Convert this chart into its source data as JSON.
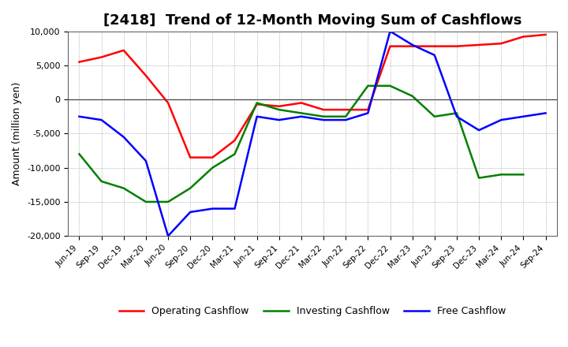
{
  "title": "[2418]  Trend of 12-Month Moving Sum of Cashflows",
  "ylabel": "Amount (million yen)",
  "xlabels": [
    "Jun-19",
    "Sep-19",
    "Dec-19",
    "Mar-20",
    "Jun-20",
    "Sep-20",
    "Dec-20",
    "Mar-21",
    "Jun-21",
    "Sep-21",
    "Dec-21",
    "Mar-22",
    "Jun-22",
    "Sep-22",
    "Dec-22",
    "Mar-23",
    "Jun-23",
    "Sep-23",
    "Dec-23",
    "Mar-24",
    "Jun-24",
    "Sep-24"
  ],
  "operating_cashflow": [
    5500,
    6200,
    7200,
    3500,
    -500,
    -8500,
    -8500,
    -6000,
    -700,
    -1000,
    -500,
    -1500,
    -1500,
    -1500,
    7800,
    7800,
    7800,
    7800,
    8000,
    8200,
    9200,
    9500
  ],
  "investing_cashflow": [
    -8000,
    -12000,
    -13000,
    -15000,
    -15000,
    -13000,
    -10000,
    -8000,
    -500,
    -1500,
    -2000,
    -2500,
    -2500,
    2000,
    2000,
    500,
    -2500,
    -2000,
    -11500,
    -11000,
    -11000,
    null
  ],
  "free_cashflow": [
    -2500,
    -3000,
    -5500,
    -9000,
    -20000,
    -16500,
    -16000,
    -16000,
    -2500,
    -3000,
    -2500,
    -3000,
    -3000,
    -2000,
    10000,
    8000,
    6500,
    -2500,
    -4500,
    -3000,
    -2500,
    -2000
  ],
  "ylim": [
    -20000,
    10000
  ],
  "yticks": [
    -20000,
    -15000,
    -10000,
    -5000,
    0,
    5000,
    10000
  ],
  "operating_color": "#ff0000",
  "investing_color": "#008000",
  "free_color": "#0000ff",
  "background_color": "#ffffff",
  "linewidth": 1.8,
  "title_fontsize": 13,
  "ylabel_fontsize": 9,
  "tick_fontsize": 8,
  "legend_fontsize": 9
}
